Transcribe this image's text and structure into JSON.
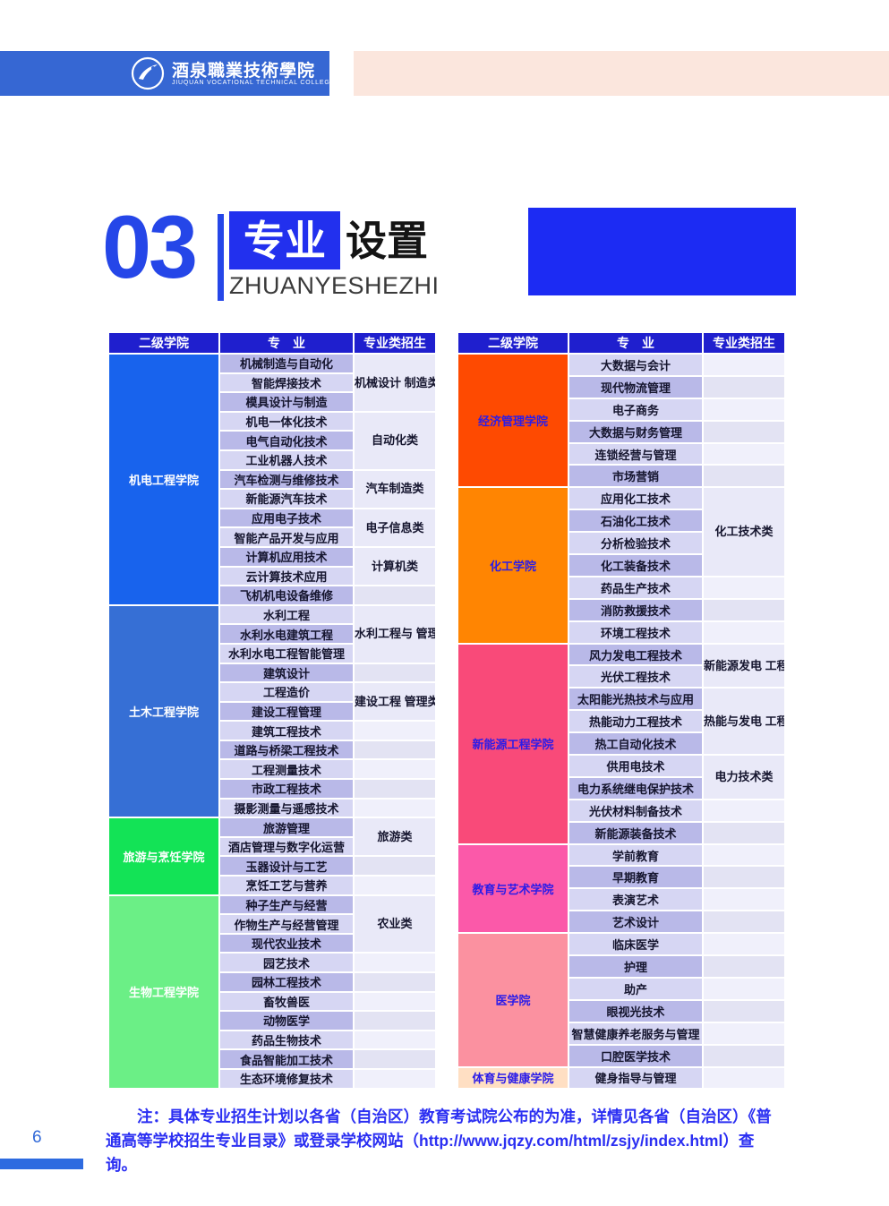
{
  "header": {
    "school_name_cn": "酒泉職業技術學院",
    "school_name_en": "JIUQUAN VOCATIONAL TECHNICAL COLLEGE"
  },
  "section": {
    "number": "03",
    "title_primary": "专业",
    "title_secondary": "设置",
    "subtitle": "ZHUANYESHEZHI"
  },
  "columns": [
    "二级学院",
    "专　业",
    "专业类招生"
  ],
  "colors": {
    "header_bar": "#3667d3",
    "header_accent": "#fbe6dd",
    "section_blue": "#2546e8",
    "table_header": "#1f1fce",
    "stripe_dark": "#b9b9e8",
    "stripe_light": "#d6d6f3"
  },
  "tables": [
    {
      "colleges": [
        {
          "name": "机电工程学院",
          "color": "#1863ed",
          "name_color": "#ffffff",
          "groups": [
            {
              "majors": [
                "机械制造与自动化",
                "智能焊接技术",
                "模具设计与制造"
              ],
              "category": "机械设计\n制造类"
            },
            {
              "majors": [
                "机电一体化技术",
                "电气自动化技术",
                "工业机器人技术"
              ],
              "category": "自动化类"
            },
            {
              "majors": [
                "汽车检测与维修技术",
                "新能源汽车技术"
              ],
              "category": "汽车制造类"
            },
            {
              "majors": [
                "应用电子技术",
                "智能产品开发与应用"
              ],
              "category": "电子信息类"
            },
            {
              "majors": [
                "计算机应用技术",
                "云计算技术应用"
              ],
              "category": "计算机类"
            },
            {
              "majors": [
                "飞机机电设备维修"
              ],
              "category": ""
            }
          ]
        },
        {
          "name": "土木工程学院",
          "color": "#366fd5",
          "name_color": "#ffffff",
          "groups": [
            {
              "majors": [
                "水利工程",
                "水利水电建筑工程",
                "水利水电工程智能管理"
              ],
              "category": "水利工程与\n管理类"
            },
            {
              "majors": [
                "建筑设计"
              ],
              "category": ""
            },
            {
              "majors": [
                "工程造价",
                "建设工程管理"
              ],
              "category": "建设工程\n管理类"
            },
            {
              "majors": [
                "建筑工程技术"
              ],
              "category": ""
            },
            {
              "majors": [
                "道路与桥梁工程技术"
              ],
              "category": ""
            },
            {
              "majors": [
                "工程测量技术"
              ],
              "category": ""
            },
            {
              "majors": [
                "市政工程技术"
              ],
              "category": ""
            },
            {
              "majors": [
                "摄影测量与遥感技术"
              ],
              "category": ""
            }
          ]
        },
        {
          "name": "旅游与烹饪学院",
          "color": "#13e356",
          "name_color": "#ffffff",
          "groups": [
            {
              "majors": [
                "旅游管理",
                "酒店管理与数字化运营"
              ],
              "category": "旅游类"
            },
            {
              "majors": [
                "玉器设计与工艺"
              ],
              "category": ""
            },
            {
              "majors": [
                "烹饪工艺与营养"
              ],
              "category": ""
            }
          ]
        },
        {
          "name": "生物工程学院",
          "color": "#6bef86",
          "name_color": "#ffffff",
          "groups": [
            {
              "majors": [
                "种子生产与经营",
                "作物生产与经营管理",
                "现代农业技术"
              ],
              "category": "农业类"
            },
            {
              "majors": [
                "园艺技术"
              ],
              "category": ""
            },
            {
              "majors": [
                "园林工程技术"
              ],
              "category": ""
            },
            {
              "majors": [
                "畜牧兽医"
              ],
              "category": ""
            },
            {
              "majors": [
                "动物医学"
              ],
              "category": ""
            },
            {
              "majors": [
                "药品生物技术"
              ],
              "category": ""
            },
            {
              "majors": [
                "食品智能加工技术"
              ],
              "category": ""
            },
            {
              "majors": [
                "生态环境修复技术"
              ],
              "category": ""
            }
          ]
        }
      ]
    },
    {
      "colleges": [
        {
          "name": "经济管理学院",
          "color": "#fe4a01",
          "name_color": "#2b1ce8",
          "groups": [
            {
              "majors": [
                "大数据与会计"
              ],
              "category": ""
            },
            {
              "majors": [
                "现代物流管理"
              ],
              "category": ""
            },
            {
              "majors": [
                "电子商务"
              ],
              "category": ""
            },
            {
              "majors": [
                "大数据与财务管理"
              ],
              "category": ""
            },
            {
              "majors": [
                "连锁经营与管理"
              ],
              "category": ""
            },
            {
              "majors": [
                "市场营销"
              ],
              "category": ""
            }
          ]
        },
        {
          "name": "化工学院",
          "color": "#ff8502",
          "name_color": "#2b1ce8",
          "groups": [
            {
              "majors": [
                "应用化工技术",
                "石油化工技术",
                "分析检验技术",
                "化工装备技术"
              ],
              "category": "化工技术类"
            },
            {
              "majors": [
                "药品生产技术"
              ],
              "category": ""
            },
            {
              "majors": [
                "消防救援技术"
              ],
              "category": ""
            },
            {
              "majors": [
                "环境工程技术"
              ],
              "category": ""
            }
          ]
        },
        {
          "name": "新能源工程学院",
          "color": "#f94a79",
          "name_color": "#2b1ce8",
          "groups": [
            {
              "majors": [
                "风力发电工程技术",
                "光伏工程技术"
              ],
              "category": "新能源发电\n工程类"
            },
            {
              "majors": [
                "太阳能光热技术与应用",
                "热能动力工程技术",
                "热工自动化技术"
              ],
              "category": "热能与发电\n工程类"
            },
            {
              "majors": [
                "供用电技术",
                "电力系统继电保护技术"
              ],
              "category": "电力技术类"
            },
            {
              "majors": [
                "光伏材料制备技术"
              ],
              "category": ""
            },
            {
              "majors": [
                "新能源装备技术"
              ],
              "category": ""
            }
          ]
        },
        {
          "name": "教育与艺术学院",
          "color": "#fb59a9",
          "name_color": "#2b1ce8",
          "groups": [
            {
              "majors": [
                "学前教育"
              ],
              "category": ""
            },
            {
              "majors": [
                "早期教育"
              ],
              "category": ""
            },
            {
              "majors": [
                "表演艺术"
              ],
              "category": ""
            },
            {
              "majors": [
                "艺术设计"
              ],
              "category": ""
            }
          ]
        },
        {
          "name": "医学院",
          "color": "#fb91a0",
          "name_color": "#2b1ce8",
          "groups": [
            {
              "majors": [
                "临床医学"
              ],
              "category": ""
            },
            {
              "majors": [
                "护理"
              ],
              "category": ""
            },
            {
              "majors": [
                "助产"
              ],
              "category": ""
            },
            {
              "majors": [
                "眼视光技术"
              ],
              "category": ""
            },
            {
              "majors": [
                "智慧健康养老服务与管理"
              ],
              "category": ""
            },
            {
              "majors": [
                "口腔医学技术"
              ],
              "category": ""
            }
          ]
        },
        {
          "name": "体育与健康学院",
          "color": "#ffdfc3",
          "name_color": "#2b1ce8",
          "groups": [
            {
              "majors": [
                "健身指导与管理"
              ],
              "category": ""
            }
          ]
        }
      ]
    }
  ],
  "footer": {
    "note": "注：具体专业招生计划以各省（自治区）教育考试院公布的为准，详情见各省（自治区）《普通高等学校招生专业目录》或登录学校网站（http://www.jqzy.com/html/zsjy/index.html）查询。",
    "page_number": "6"
  }
}
